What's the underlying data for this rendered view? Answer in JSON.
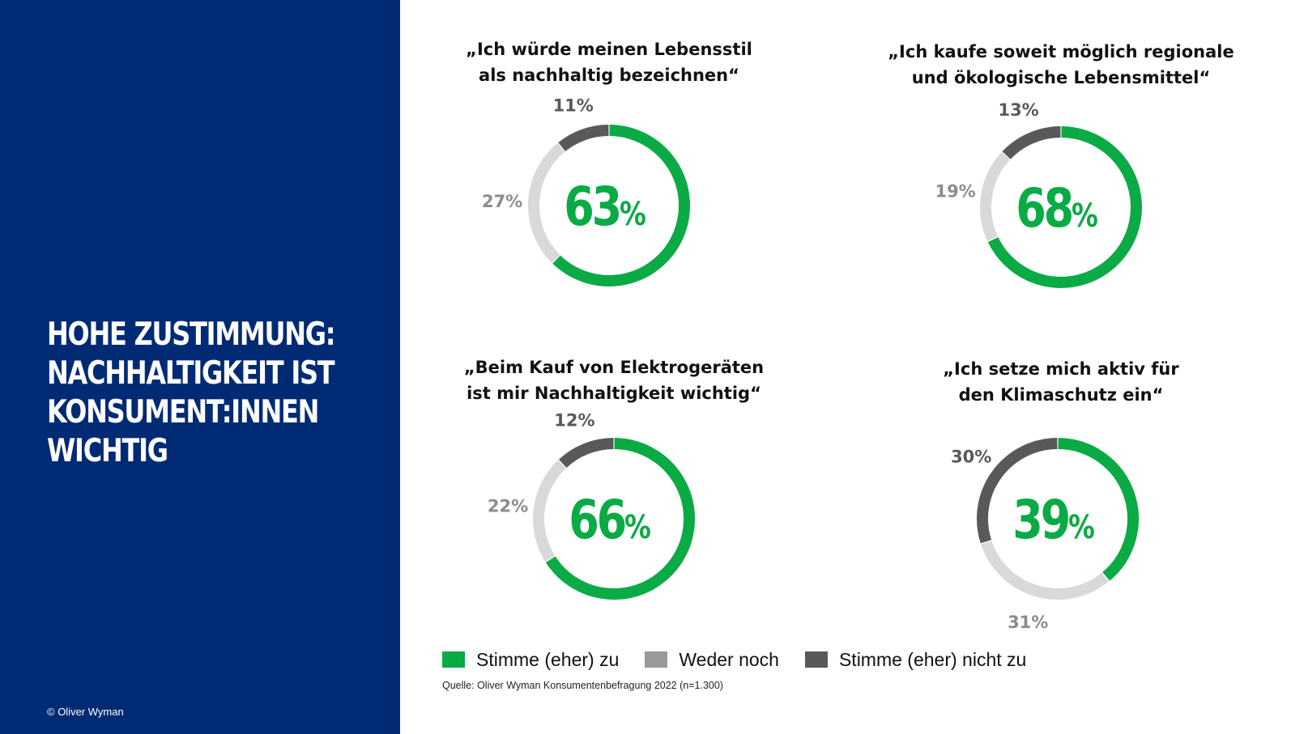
{
  "sidebar": {
    "headline_lines": [
      "HOHE ZUSTIMMUNG:",
      "NACHHALTIGKEIT IST",
      "KONSUMENT:INNEN",
      "WICHTIG"
    ],
    "copyright": "© Oliver Wyman"
  },
  "colors": {
    "panel_bg": "#002b74",
    "agree": "#0aaa45",
    "neutral": "#d9d9d9",
    "disagree": "#595959",
    "neutral_label": "#8c8c8c",
    "disagree_label": "#595959"
  },
  "chart_data": {
    "type": "pie",
    "variant": "donut",
    "legend": {
      "placement": "bottom",
      "entries": [
        {
          "key": "agree",
          "label": "Stimme (eher) zu",
          "color": "#0aaa45"
        },
        {
          "key": "neutral",
          "label": "Weder noch",
          "color": "#999999"
        },
        {
          "key": "disagree",
          "label": "Stimme (eher) nicht zu",
          "color": "#595959"
        }
      ]
    },
    "source": "Quelle: Oliver Wyman Konsumentenbefragung 2022 (n=1.300)",
    "charts": [
      {
        "title_lines": [
          "„Ich würde meinen Lebensstil",
          "als nachhaltig bezeichnen“"
        ],
        "values": {
          "agree": 63,
          "neutral": 27,
          "disagree": 11
        },
        "center_label": "63",
        "labels": {
          "neutral": "27%",
          "disagree": "11%"
        }
      },
      {
        "title_lines": [
          "„Ich kaufe soweit möglich regionale",
          "und ökologische Lebensmittel“"
        ],
        "values": {
          "agree": 68,
          "neutral": 19,
          "disagree": 13
        },
        "center_label": "68",
        "labels": {
          "neutral": "19%",
          "disagree": "13%"
        }
      },
      {
        "title_lines": [
          "„Beim Kauf von Elektrogeräten",
          "ist mir Nachhaltigkeit wichtig“"
        ],
        "values": {
          "agree": 66,
          "neutral": 22,
          "disagree": 12
        },
        "center_label": "66",
        "labels": {
          "neutral": "22%",
          "disagree": "12%"
        }
      },
      {
        "title_lines": [
          "„Ich setze mich aktiv für",
          "den Klimaschutz ein“"
        ],
        "values": {
          "agree": 39,
          "neutral": 31,
          "disagree": 30
        },
        "center_label": "39",
        "labels": {
          "neutral": "31%",
          "disagree": "30%"
        }
      }
    ]
  }
}
